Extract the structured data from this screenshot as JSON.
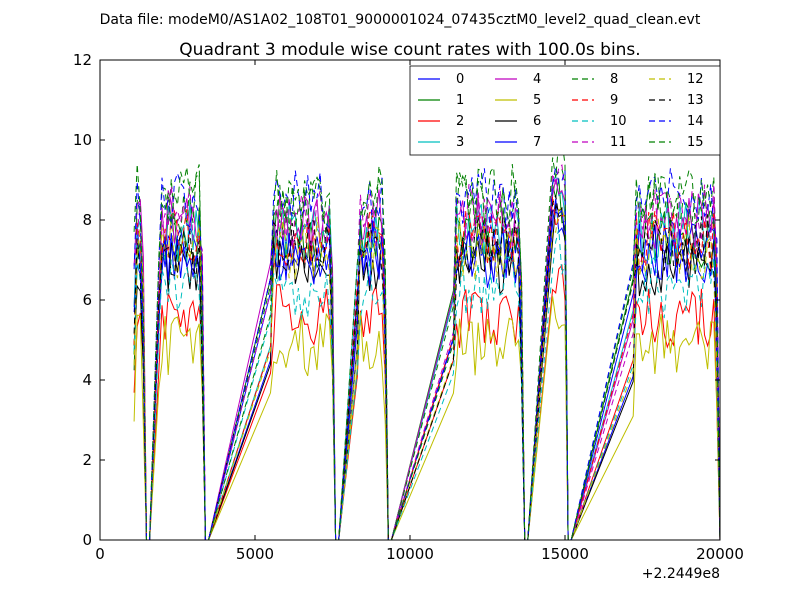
{
  "suptitle": "Data file: modeM0/AS1A02_108T01_9000001024_07435cztM0_level2_quad_clean.evt",
  "chart_data": {
    "type": "line",
    "title": "Quadrant 3 module wise count rates with 100.0s bins.",
    "xlabel": "",
    "ylabel": "",
    "xlim": [
      0,
      20000
    ],
    "ylim": [
      0,
      12
    ],
    "x_offset_label": "+2.2449e8",
    "x_ticks": [
      0,
      5000,
      10000,
      15000,
      20000
    ],
    "x_tick_labels": [
      "0",
      "5000",
      "10000",
      "15000",
      "20000"
    ],
    "y_ticks": [
      0,
      2,
      4,
      6,
      8,
      10,
      12
    ],
    "y_tick_labels": [
      "0",
      "2",
      "4",
      "6",
      "8",
      "10",
      "12"
    ],
    "grid": false,
    "legend_position": "top-right",
    "legend_columns": 4,
    "bin_size_s": 100,
    "segments": [
      {
        "x_start": 1100,
        "x_end": 1400
      },
      {
        "x_start": 1900,
        "x_end": 3300
      },
      {
        "x_start": 5500,
        "x_end": 7500
      },
      {
        "x_start": 8300,
        "x_end": 9200
      },
      {
        "x_start": 11400,
        "x_end": 13600
      },
      {
        "x_start": 14600,
        "x_end": 15000
      },
      {
        "x_start": 17200,
        "x_end": 19900
      }
    ],
    "series": [
      {
        "name": "0",
        "color": "#0000ff",
        "dash": "solid",
        "level": 7.2
      },
      {
        "name": "1",
        "color": "#008000",
        "dash": "solid",
        "level": 7.6
      },
      {
        "name": "2",
        "color": "#ff0000",
        "dash": "solid",
        "level": 5.6
      },
      {
        "name": "3",
        "color": "#00bfbf",
        "dash": "solid",
        "level": 7.7
      },
      {
        "name": "4",
        "color": "#bf00bf",
        "dash": "solid",
        "level": 8.0
      },
      {
        "name": "5",
        "color": "#bfbf00",
        "dash": "solid",
        "level": 4.9
      },
      {
        "name": "6",
        "color": "#000000",
        "dash": "solid",
        "level": 6.9
      },
      {
        "name": "7",
        "color": "#0000ff",
        "dash": "solid",
        "level": 7.1
      },
      {
        "name": "8",
        "color": "#008000",
        "dash": "dashed",
        "level": 8.4
      },
      {
        "name": "9",
        "color": "#ff0000",
        "dash": "dashed",
        "level": 7.5
      },
      {
        "name": "10",
        "color": "#00bfbf",
        "dash": "dashed",
        "level": 6.3
      },
      {
        "name": "11",
        "color": "#bf00bf",
        "dash": "dashed",
        "level": 8.1
      },
      {
        "name": "12",
        "color": "#bfbf00",
        "dash": "dashed",
        "level": 7.3
      },
      {
        "name": "13",
        "color": "#000000",
        "dash": "dashed",
        "level": 7.4
      },
      {
        "name": "14",
        "color": "#0000ff",
        "dash": "dashed",
        "level": 8.5
      },
      {
        "name": "15",
        "color": "#008000",
        "dash": "dashed",
        "level": 8.6
      }
    ]
  }
}
